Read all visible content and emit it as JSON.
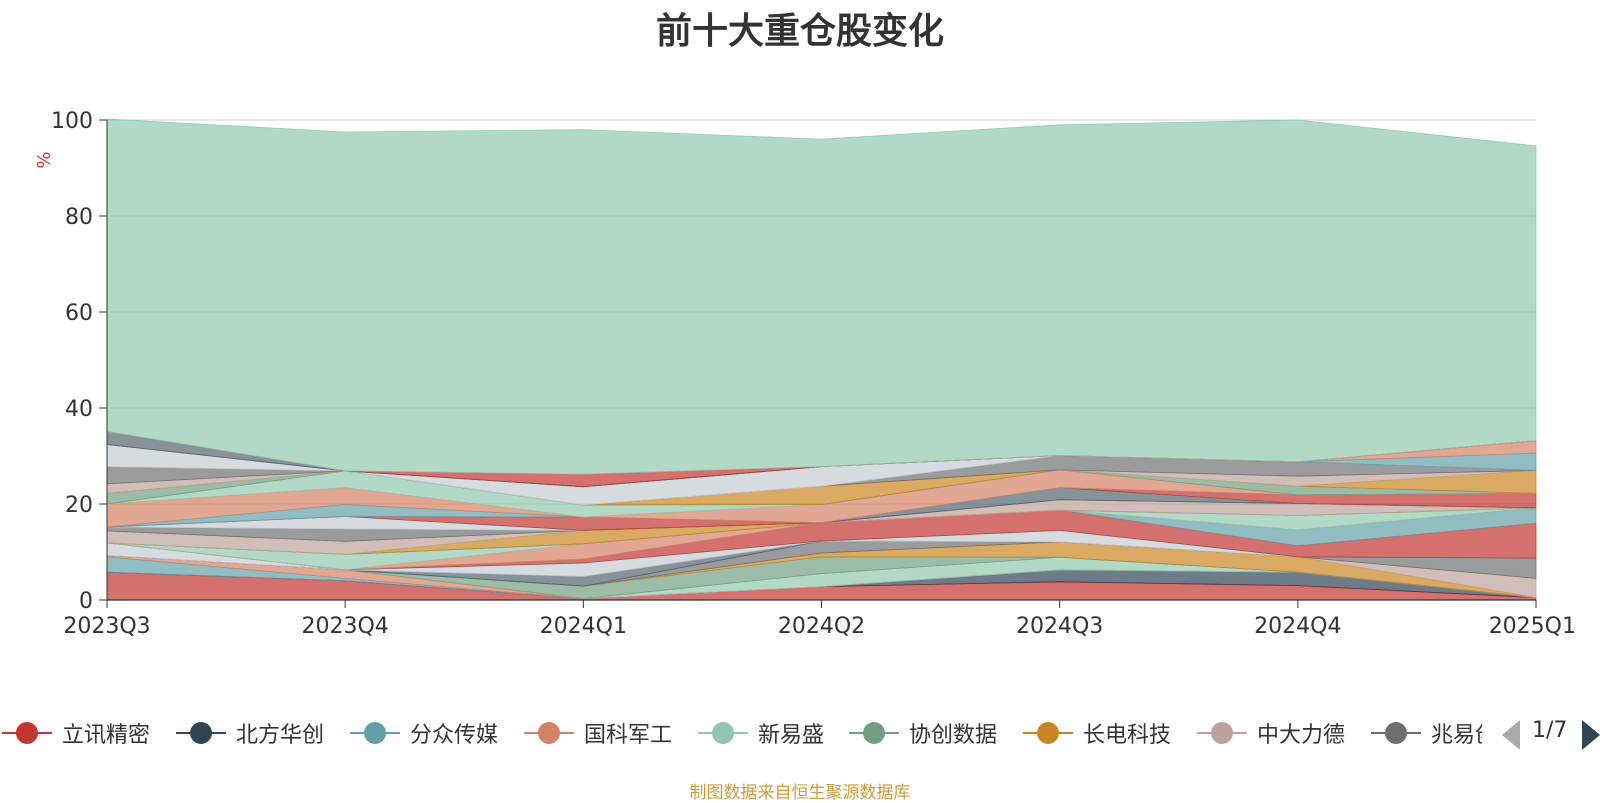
{
  "title": "前十大重仓股变化",
  "source": "制图数据来自恒生聚源数据库",
  "pager": {
    "text": "1/7"
  },
  "chart_data": {
    "type": "area",
    "stacked": true,
    "title": "前十大重仓股变化",
    "ylabel": "%",
    "xlabel": "",
    "ylim": [
      0,
      100
    ],
    "yticks": [
      0,
      20,
      40,
      60,
      80,
      100
    ],
    "grid": true,
    "legend_position": "bottom",
    "x": [
      "2023Q3",
      "2023Q4",
      "2024Q1",
      "2024Q2",
      "2024Q3",
      "2024Q4",
      "2025Q1"
    ],
    "legend": [
      {
        "name": "立讯精密",
        "color": "#c23531"
      },
      {
        "name": "北方华创",
        "color": "#2f4554"
      },
      {
        "name": "分众传媒",
        "color": "#61a0a8"
      },
      {
        "name": "国科军工",
        "color": "#d48265"
      },
      {
        "name": "新易盛",
        "color": "#91c7ae"
      },
      {
        "name": "协创数据",
        "color": "#749f83"
      },
      {
        "name": "长电科技",
        "color": "#ca8622"
      },
      {
        "name": "中大力德",
        "color": "#bda29a"
      },
      {
        "name": "兆易创新",
        "color": "#6e7074"
      }
    ],
    "series": [
      {
        "color": "#c23531",
        "values": [
          5.8,
          4.0,
          0.3,
          2.8,
          3.8,
          3.0,
          0.5
        ]
      },
      {
        "color": "#2f4554",
        "values": [
          0.0,
          0.0,
          0.0,
          0.0,
          2.5,
          2.8,
          0.0
        ]
      },
      {
        "color": "#61a0a8",
        "values": [
          3.2,
          0.5,
          0.0,
          0.0,
          0.0,
          0.0,
          0.0
        ]
      },
      {
        "color": "#d48265",
        "values": [
          0.3,
          1.8,
          0.0,
          0.0,
          0.0,
          0.0,
          0.0
        ]
      },
      {
        "color": "#91c7ae",
        "values": [
          0.0,
          0.0,
          0.0,
          2.7,
          2.6,
          0.0,
          0.0
        ]
      },
      {
        "color": "#749f83",
        "values": [
          0.0,
          0.0,
          2.6,
          3.5,
          0.0,
          0.0,
          0.0
        ]
      },
      {
        "color": "#ca8622",
        "values": [
          0.0,
          0.0,
          0.0,
          0.8,
          3.2,
          3.2,
          0.0
        ]
      },
      {
        "color": "#bda29a",
        "values": [
          0.0,
          0.0,
          0.0,
          0.0,
          0.0,
          0.0,
          4.0
        ]
      },
      {
        "color": "#6e7074",
        "values": [
          0.0,
          0.0,
          0.0,
          2.5,
          0.0,
          0.0,
          4.2
        ]
      },
      {
        "color": "#546570",
        "values": [
          0.0,
          0.0,
          2.0,
          0.0,
          0.0,
          0.0,
          0.0
        ]
      },
      {
        "color": "#c4ccd3",
        "values": [
          2.6,
          0.0,
          2.8,
          0.0,
          2.4,
          0.0,
          0.0
        ]
      },
      {
        "color": "#c23531",
        "values": [
          0.0,
          0.0,
          0.8,
          3.8,
          4.2,
          2.3,
          7.3
        ]
      },
      {
        "color": "#61a0a8",
        "values": [
          0.0,
          0.0,
          0.0,
          0.0,
          0.0,
          3.3,
          3.2
        ]
      },
      {
        "color": "#d48265",
        "values": [
          0.0,
          0.0,
          3.2,
          0.0,
          0.0,
          0.0,
          0.0
        ]
      },
      {
        "color": "#91c7ae",
        "values": [
          0.0,
          3.2,
          0.0,
          0.0,
          0.0,
          3.0,
          0.0
        ]
      },
      {
        "color": "#749f83",
        "values": [
          0.0,
          0.0,
          0.0,
          0.0,
          0.0,
          0.0,
          0.0
        ]
      },
      {
        "color": "#ca8622",
        "values": [
          0.0,
          0.0,
          2.8,
          0.0,
          0.0,
          0.0,
          0.0
        ]
      },
      {
        "color": "#bda29a",
        "values": [
          2.5,
          2.7,
          0.0,
          0.0,
          2.2,
          2.5,
          0.0
        ]
      },
      {
        "color": "#6e7074",
        "values": [
          0.8,
          2.6,
          0.0,
          0.0,
          0.0,
          0.0,
          0.0
        ]
      },
      {
        "color": "#546570",
        "values": [
          0.0,
          0.0,
          0.0,
          0.0,
          2.5,
          0.0,
          0.0
        ]
      },
      {
        "color": "#c4ccd3",
        "values": [
          0.0,
          2.6,
          0.0,
          0.0,
          0.0,
          0.0,
          0.0
        ]
      },
      {
        "color": "#c23531",
        "values": [
          0.0,
          0.0,
          2.8,
          0.0,
          0.0,
          1.8,
          3.0
        ]
      },
      {
        "color": "#61a0a8",
        "values": [
          0.0,
          2.5,
          0.0,
          0.0,
          0.0,
          0.0,
          0.0
        ]
      },
      {
        "color": "#d48265",
        "values": [
          4.8,
          3.5,
          0.0,
          3.8,
          3.7,
          0.0,
          0.0
        ]
      },
      {
        "color": "#91c7ae",
        "values": [
          0.0,
          3.5,
          2.5,
          0.0,
          0.0,
          0.0,
          0.0
        ]
      },
      {
        "color": "#749f83",
        "values": [
          2.2,
          0.0,
          0.0,
          0.0,
          0.0,
          1.8,
          0.0
        ]
      },
      {
        "color": "#ca8622",
        "values": [
          0.0,
          0.0,
          0.0,
          3.8,
          0.0,
          0.0,
          4.8
        ]
      },
      {
        "color": "#bda29a",
        "values": [
          2.0,
          0.0,
          0.0,
          0.0,
          0.0,
          2.1,
          0.0
        ]
      },
      {
        "color": "#6e7074",
        "values": [
          3.6,
          0.0,
          0.0,
          0.0,
          3.0,
          3.0,
          0.0
        ]
      },
      {
        "color": "#c4ccd3",
        "values": [
          4.6,
          0.0,
          3.8,
          4.1,
          0.0,
          0.0,
          0.0
        ]
      },
      {
        "color": "#61a0a8",
        "values": [
          0.0,
          0.0,
          0.0,
          0.0,
          0.0,
          0.0,
          3.6
        ]
      },
      {
        "color": "#d48265",
        "values": [
          0.0,
          0.0,
          0.0,
          0.0,
          0.0,
          0.0,
          2.6
        ]
      },
      {
        "color": "#546570",
        "values": [
          2.7,
          0.0,
          0.0,
          0.0,
          0.0,
          0.0,
          0.0
        ]
      },
      {
        "color": "#c23531",
        "values": [
          0.0,
          0.0,
          2.6,
          0.0,
          0.0,
          0.0,
          0.0
        ]
      },
      {
        "color": "#91c7ae",
        "values": [
          65.1,
          70.6,
          71.8,
          68.2,
          68.9,
          71.2,
          61.4
        ]
      }
    ]
  }
}
